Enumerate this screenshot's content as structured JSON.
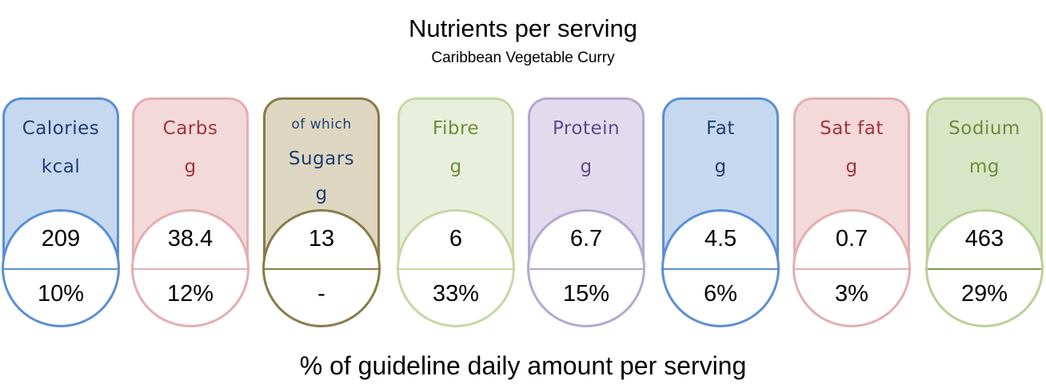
{
  "header": {
    "title": "Nutrients per serving",
    "subtitle": "Caribbean Vegetable Curry"
  },
  "footer": {
    "note": "% of guideline daily amount per serving"
  },
  "nutrients": [
    {
      "name": "Calories",
      "unit": "kcal",
      "value": "209",
      "percent": "10%",
      "border_color": "#5b8fd4",
      "fill_color": "#c5d8f0",
      "text_color": "#1f3e6e",
      "divider_color": "#5b8fd4"
    },
    {
      "name": "Carbs",
      "unit": "g",
      "value": "38.4",
      "percent": "12%",
      "border_color": "#e4aeb0",
      "fill_color": "#f3d9d9",
      "text_color": "#a2353b",
      "divider_color": "#e4aeb0"
    },
    {
      "name": "of which",
      "name2": "Sugars",
      "unit": "g",
      "value": "13",
      "percent": "-",
      "border_color": "#8a7b49",
      "fill_color": "#ddd7c1",
      "text_color": "#1f3e6e",
      "divider_color": "#8a7b49"
    },
    {
      "name": "Fibre",
      "unit": "g",
      "value": "6",
      "percent": "33%",
      "border_color": "#c4d9a3",
      "fill_color": "#e8efdc",
      "text_color": "#6f8c39",
      "divider_color": "#c4d9a3"
    },
    {
      "name": "Protein",
      "unit": "g",
      "value": "6.7",
      "percent": "15%",
      "border_color": "#b5a7cf",
      "fill_color": "#e2dbee",
      "text_color": "#5f4a8b",
      "divider_color": "#b5a7cf"
    },
    {
      "name": "Fat",
      "unit": "g",
      "value": "4.5",
      "percent": "6%",
      "border_color": "#5b8fd4",
      "fill_color": "#c5d8f0",
      "text_color": "#1f3e6e",
      "divider_color": "#5b8fd4"
    },
    {
      "name": "Sat fat",
      "unit": "g",
      "value": "0.7",
      "percent": "3%",
      "border_color": "#e4aeb0",
      "fill_color": "#f3d9d9",
      "text_color": "#a2353b",
      "divider_color": "#e4aeb0"
    },
    {
      "name": "Sodium",
      "unit": "mg",
      "value": "463",
      "percent": "29%",
      "border_color": "#b9d196",
      "fill_color": "#d9e6c5",
      "text_color": "#6f8c39",
      "divider_color": "#7f9a4e"
    }
  ]
}
